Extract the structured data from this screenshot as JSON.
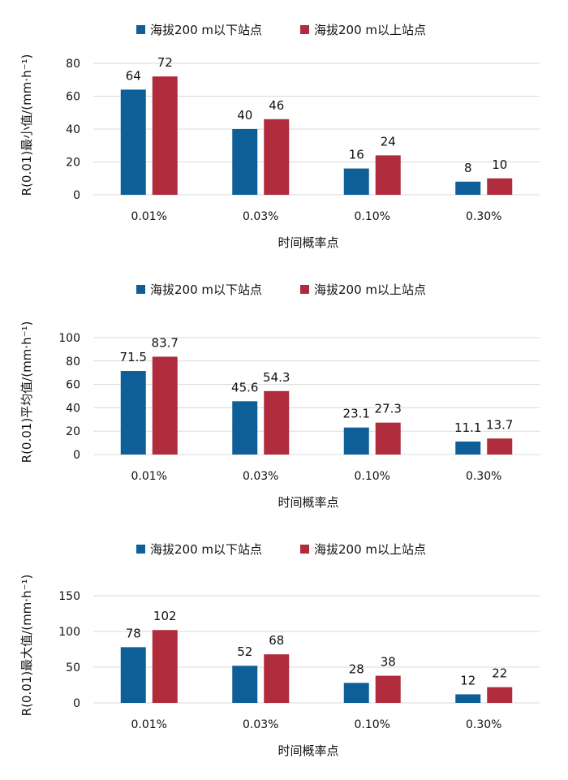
{
  "chart_data": [
    {
      "type": "bar",
      "categories": [
        "0.01%",
        "0.03%",
        "0.10%",
        "0.30%"
      ],
      "series": [
        {
          "name": "海拔200 m以下站点",
          "values": [
            64,
            40,
            16,
            8
          ],
          "labels": [
            "64",
            "40",
            "16",
            "8"
          ],
          "color": "#0e5e98"
        },
        {
          "name": "海拔200 m以上站点",
          "values": [
            72,
            46,
            24,
            10
          ],
          "labels": [
            "72",
            "46",
            "24",
            "10"
          ],
          "color": "#b02b3b"
        }
      ],
      "xlabel": "时间概率点",
      "ylabel": "R(0.01)最小值/(mm·h⁻¹)",
      "ylim": [
        0,
        80
      ],
      "yticks": [
        "0",
        "20",
        "40",
        "60",
        "80"
      ],
      "legend": "top",
      "grid": true
    },
    {
      "type": "bar",
      "categories": [
        "0.01%",
        "0.03%",
        "0.10%",
        "0.30%"
      ],
      "series": [
        {
          "name": "海拔200 m以下站点",
          "values": [
            71.5,
            45.6,
            23.1,
            11.1
          ],
          "labels": [
            "71.5",
            "45.6",
            "23.1",
            "11.1"
          ],
          "color": "#0e5e98"
        },
        {
          "name": "海拔200 m以上站点",
          "values": [
            83.7,
            54.3,
            27.3,
            13.7
          ],
          "labels": [
            "83.7",
            "54.3",
            "27.3",
            "13.7"
          ],
          "color": "#b02b3b"
        }
      ],
      "xlabel": "时间概率点",
      "ylabel": "R(0.01)平均值/(mm·h⁻¹)",
      "ylim": [
        0,
        100
      ],
      "yticks": [
        "0",
        "20",
        "40",
        "60",
        "80",
        "100"
      ],
      "legend": "top",
      "grid": true
    },
    {
      "type": "bar",
      "categories": [
        "0.01%",
        "0.03%",
        "0.10%",
        "0.30%"
      ],
      "series": [
        {
          "name": "海拔200 m以下站点",
          "values": [
            78,
            52,
            28,
            12
          ],
          "labels": [
            "78",
            "52",
            "28",
            "12"
          ],
          "color": "#0e5e98"
        },
        {
          "name": "海拔200 m以上站点",
          "values": [
            102,
            68,
            38,
            22
          ],
          "labels": [
            "102",
            "68",
            "38",
            "22"
          ],
          "color": "#b02b3b"
        }
      ],
      "xlabel": "时间概率点",
      "ylabel": "R(0.01)最大值/(mm·h⁻¹)",
      "ylim": [
        0,
        150
      ],
      "yticks": [
        "0",
        "50",
        "100",
        "150"
      ],
      "legend": "top",
      "grid": true
    }
  ]
}
